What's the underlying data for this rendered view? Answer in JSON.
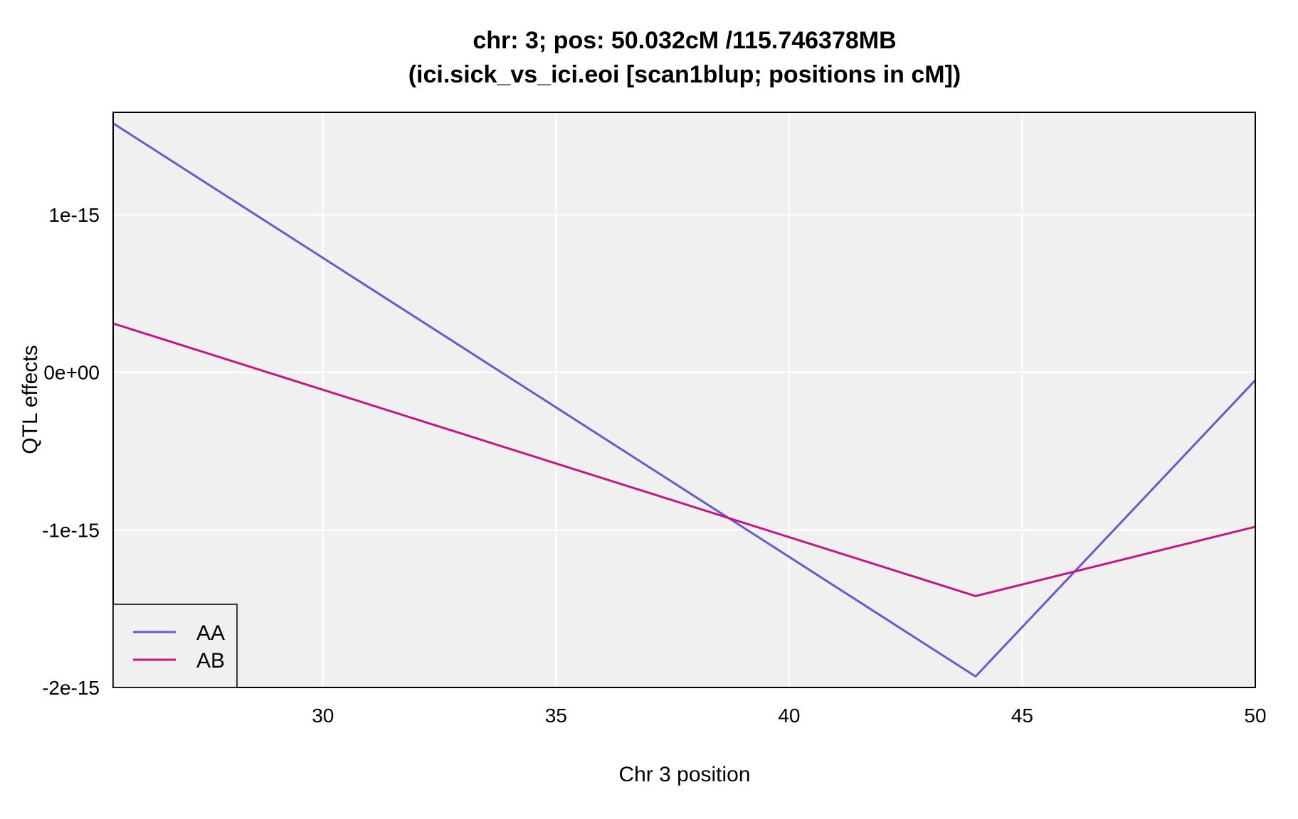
{
  "chart_data": {
    "type": "line",
    "title": "chr: 3; pos: 50.032cM /115.746378MB",
    "subtitle": "(ici.sick_vs_ici.eoi [scan1blup; positions in cM])",
    "xlabel": "Chr 3 position",
    "ylabel": "QTL effects",
    "xlim": [
      25.5,
      50.0
    ],
    "ylim": [
      -2e-15,
      1.65e-15
    ],
    "x_ticks": [
      30,
      35,
      40,
      45,
      50
    ],
    "x_tick_labels": [
      "30",
      "35",
      "40",
      "45",
      "50"
    ],
    "y_ticks": [
      1e-15,
      0,
      -1e-15,
      -2e-15
    ],
    "y_tick_labels": [
      "1e-15",
      "0e+00",
      "-1e-15",
      "-2e-15"
    ],
    "grid": true,
    "legend_position": "bottom-left",
    "background_color": "#f0f0f0",
    "grid_color": "#ffffff",
    "series": [
      {
        "name": "AA",
        "color": "#6a5acd",
        "x": [
          25.5,
          44.0,
          50.0
        ],
        "y": [
          1.58e-15,
          -1.93e-15,
          -5e-17
        ]
      },
      {
        "name": "AB",
        "color": "#c71585",
        "x": [
          25.5,
          44.0,
          50.0
        ],
        "y": [
          3.1e-16,
          -1.42e-15,
          -9.8e-16
        ]
      }
    ]
  }
}
